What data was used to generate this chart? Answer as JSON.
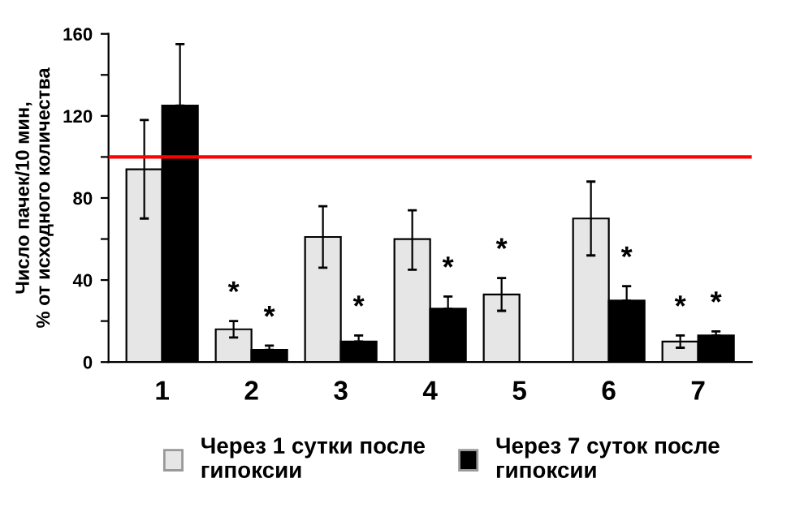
{
  "chart_data": {
    "type": "bar",
    "ylabel": "Число пачек/10 мин,\n% от исходного количества",
    "categories": [
      "1",
      "2",
      "3",
      "4",
      "5",
      "6",
      "7"
    ],
    "series": [
      {
        "name": "Через 1 сутки после\nгипоксии",
        "color": "#e6e6e6",
        "values": [
          94,
          16,
          61,
          60,
          33,
          70,
          10
        ],
        "errors": [
          [
            70,
            118
          ],
          [
            12,
            20
          ],
          [
            46,
            76
          ],
          [
            45,
            74
          ],
          [
            25,
            41
          ],
          [
            52,
            88
          ],
          [
            7,
            13
          ]
        ],
        "value_labels": [
          null,
          "*",
          null,
          null,
          "*",
          null,
          "*"
        ]
      },
      {
        "name": "Через 7 суток после\nгипоксии",
        "color": "#000000",
        "values": [
          125,
          6,
          10,
          26,
          null,
          30,
          13
        ],
        "errors": [
          [
            125,
            155
          ],
          [
            6,
            8
          ],
          [
            10,
            13
          ],
          [
            26,
            32
          ],
          null,
          [
            30,
            37
          ],
          [
            13,
            15
          ]
        ],
        "value_labels": [
          null,
          "*",
          "*",
          "*",
          null,
          "*",
          "*"
        ]
      }
    ],
    "ylim": [
      0,
      160
    ],
    "yticks": [
      0,
      {
        "value": 20,
        "label": null
      },
      40,
      {
        "value": 60,
        "label": null
      },
      80,
      {
        "value": 100,
        "label": null
      },
      120,
      {
        "value": 140,
        "label": null
      },
      160
    ],
    "ref_lines": [
      {
        "axis": "y",
        "value": 100,
        "color": "#ff0000"
      }
    ],
    "grid": false,
    "legend": "bottom"
  }
}
